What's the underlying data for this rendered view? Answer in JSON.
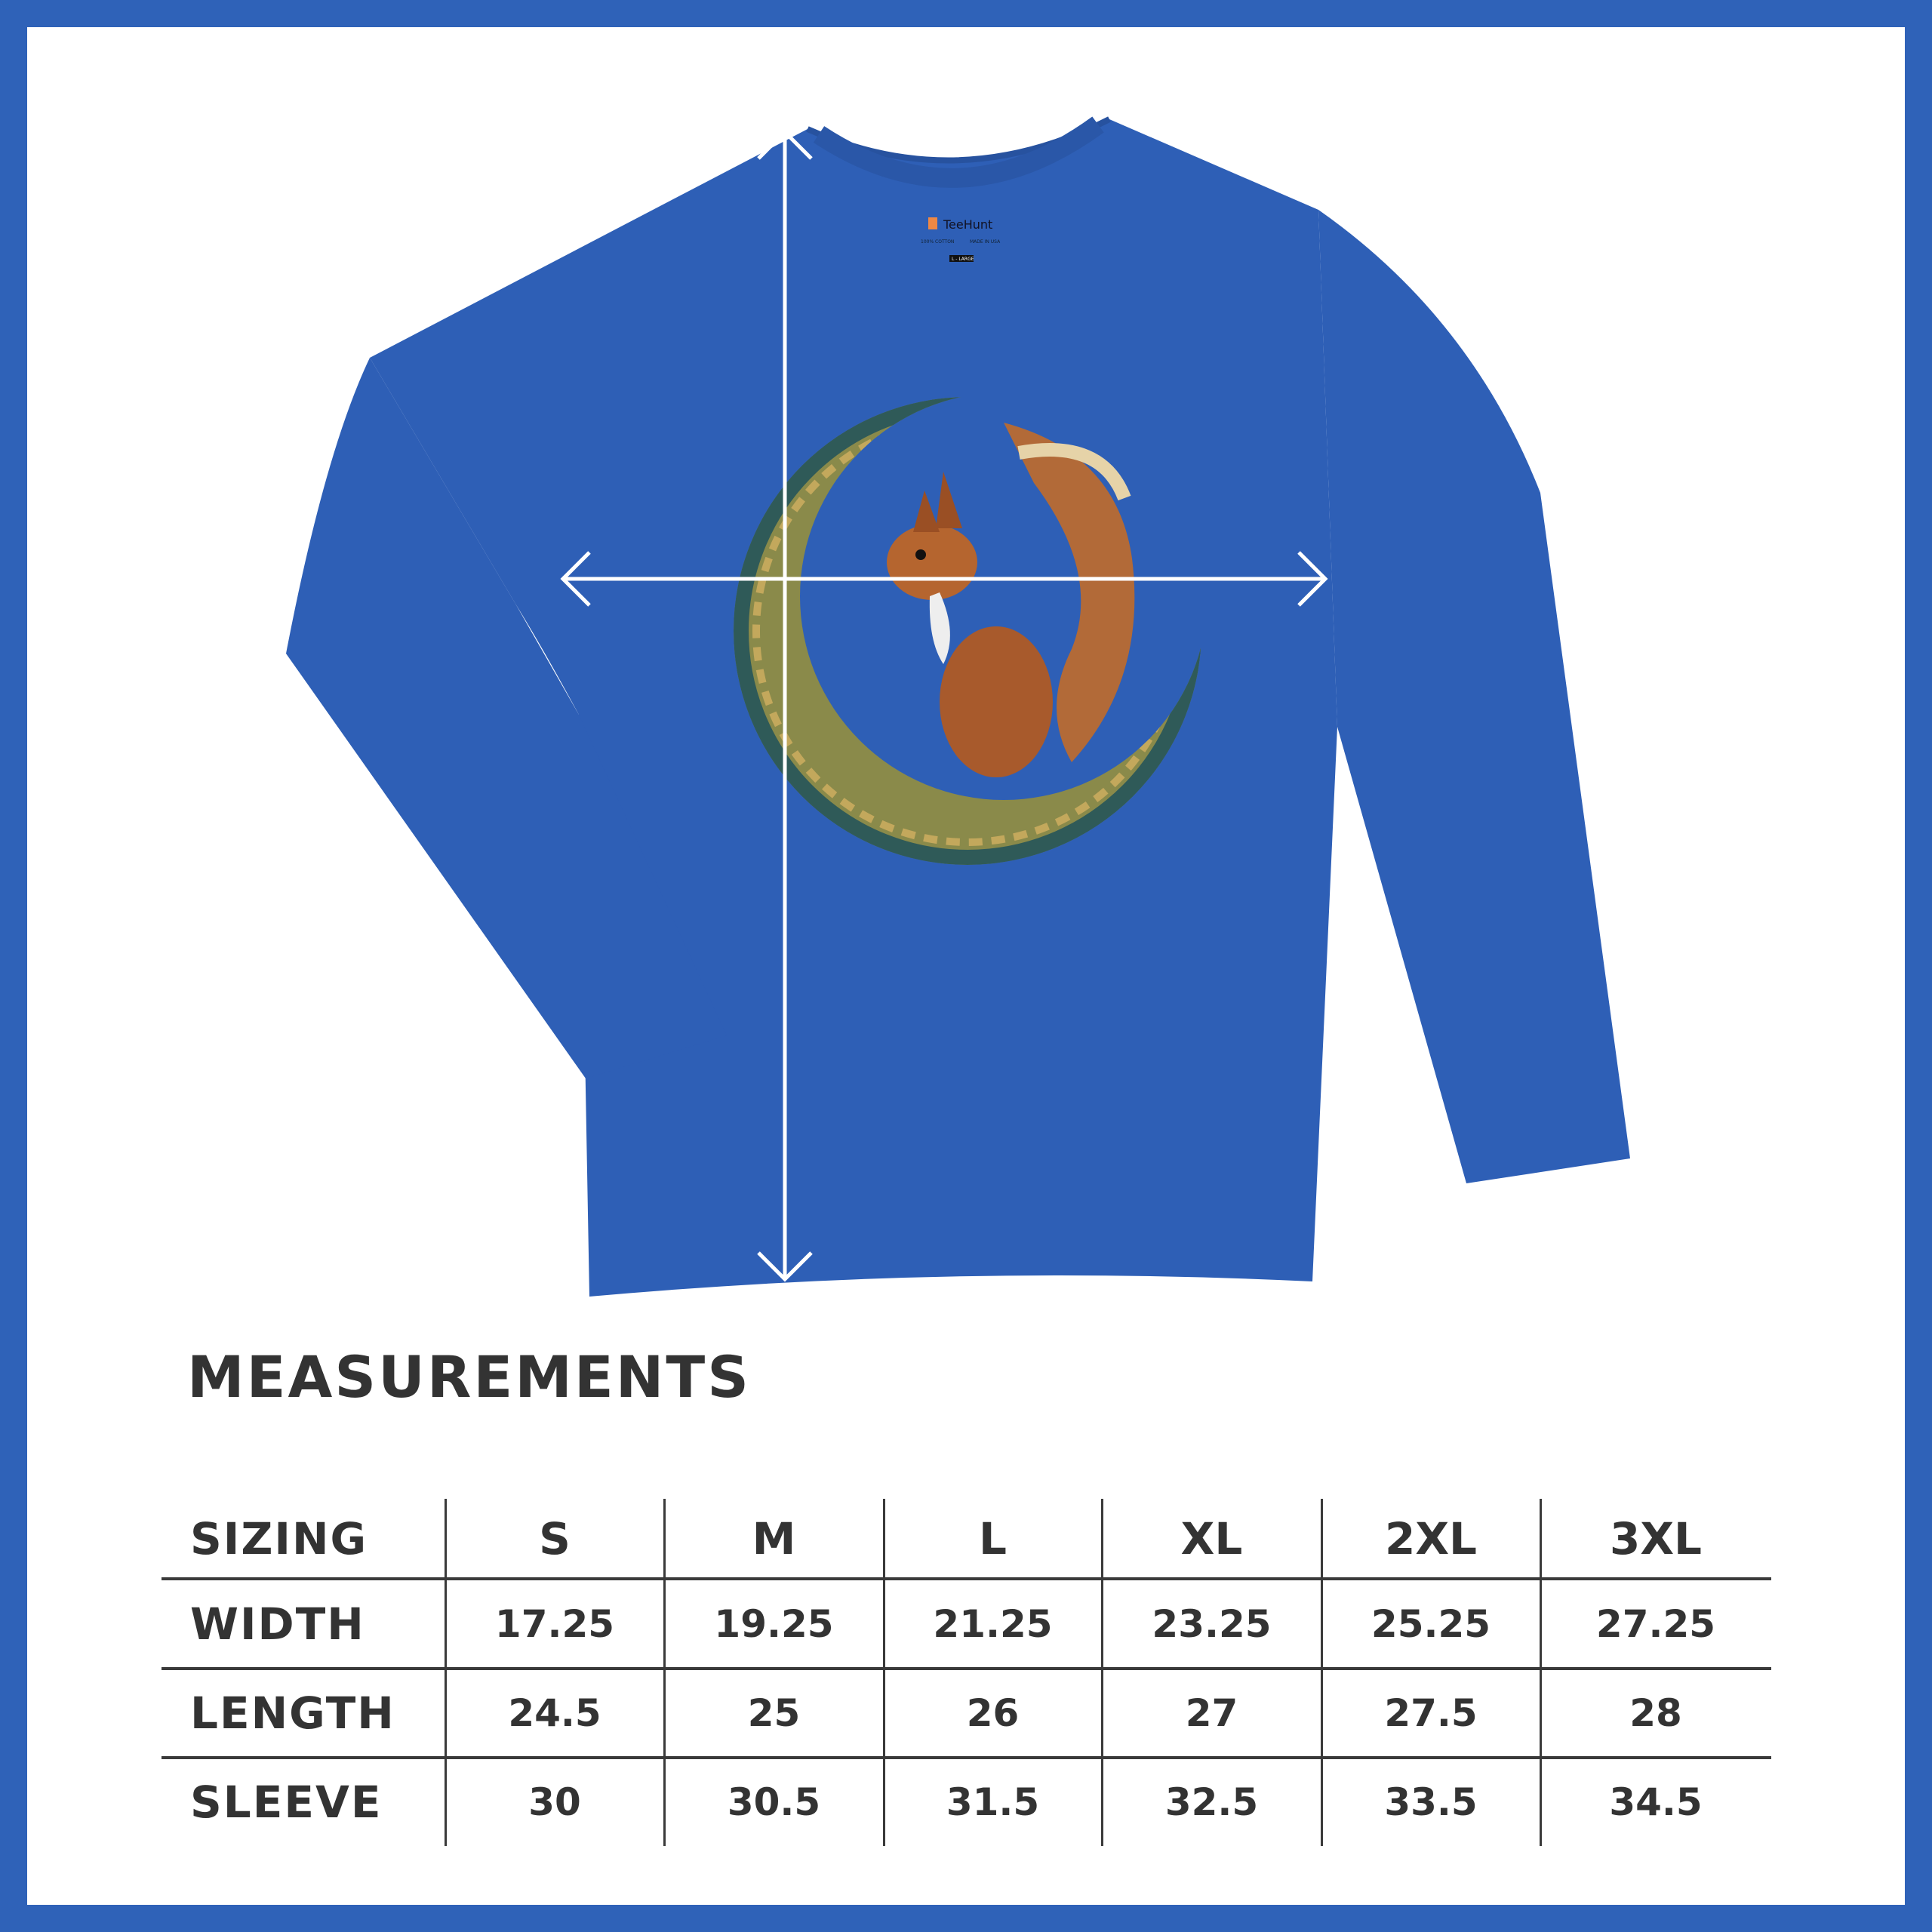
{
  "colors": {
    "frame": "#2f62b8",
    "shirt": "#2f62b8",
    "text": "#333333"
  },
  "product": {
    "label_brand": "TeeHunt",
    "label_fabric": "100% COTTON",
    "label_origin": "MADE IN USA",
    "label_size": "L - LARGE",
    "print": "squirrel-on-crescent-moon"
  },
  "title": "MEASUREMENTS",
  "table": {
    "header": [
      "SIZING",
      "S",
      "M",
      "L",
      "XL",
      "2XL",
      "3XL"
    ],
    "rows": [
      {
        "label": "WIDTH",
        "values": [
          "17.25",
          "19.25",
          "21.25",
          "23.25",
          "25.25",
          "27.25"
        ]
      },
      {
        "label": "LENGTH",
        "values": [
          "24.5",
          "25",
          "26",
          "27",
          "27.5",
          "28"
        ]
      },
      {
        "label": "SLEEVE",
        "values": [
          "30",
          "30.5",
          "31.5",
          "32.5",
          "33.5",
          "34.5"
        ]
      }
    ]
  }
}
